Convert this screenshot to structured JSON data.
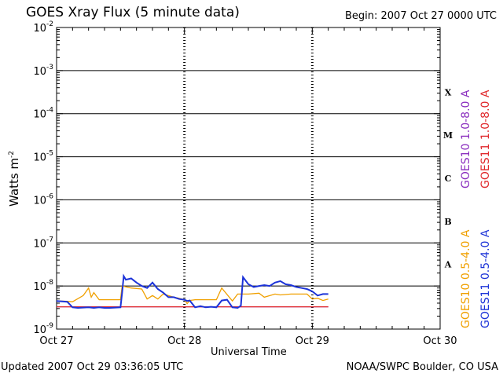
{
  "header": {
    "title": "GOES Xray Flux (5 minute data)",
    "begin": "Begin:  2007 Oct 27 0000 UTC"
  },
  "footer": {
    "updated": "Updated 2007 Oct 29 03:36:05 UTC",
    "credit": "NOAA/SWPC Boulder, CO USA"
  },
  "chart_data": {
    "type": "line",
    "title": "GOES Xray Flux (5 minute data)",
    "xlabel": "Universal Time",
    "ylabel": "Watts m",
    "ylabel_sup": "-2",
    "yscale": "log",
    "ylim": [
      1e-09,
      0.01
    ],
    "xlim": [
      0,
      72
    ],
    "x_unit": "hours since 2007 Oct 27 0000 UTC",
    "x_ticks": [
      {
        "x": 0,
        "label": "Oct 27"
      },
      {
        "x": 24,
        "label": "Oct 28"
      },
      {
        "x": 48,
        "label": "Oct 29"
      },
      {
        "x": 72,
        "label": "Oct 30"
      }
    ],
    "y_ticks": [
      {
        "base": "10",
        "exp": "-9"
      },
      {
        "base": "10",
        "exp": "-8"
      },
      {
        "base": "10",
        "exp": "-7"
      },
      {
        "base": "10",
        "exp": "-6"
      },
      {
        "base": "10",
        "exp": "-5"
      },
      {
        "base": "10",
        "exp": "-4"
      },
      {
        "base": "10",
        "exp": "-3"
      },
      {
        "base": "10",
        "exp": "-2"
      }
    ],
    "flare_classes": [
      "A",
      "B",
      "C",
      "M",
      "X"
    ],
    "grid": true,
    "legend_position": "right",
    "series": [
      {
        "name": "GOES10 1.0-8.0 A",
        "color": "#8b2fbf",
        "x": [
          0,
          5,
          10,
          12,
          20,
          24,
          30,
          36,
          42,
          48,
          51
        ],
        "y": [
          3.3e-09,
          3.3e-09,
          3.3e-09,
          3.3e-09,
          3.3e-09,
          3.3e-09,
          3.3e-09,
          3.3e-09,
          3.3e-09,
          3.3e-09,
          3.3e-09
        ]
      },
      {
        "name": "GOES11 1.0-8.0 A",
        "color": "#e0282c",
        "x": [
          0,
          5,
          10,
          12,
          20,
          24,
          30,
          36,
          42,
          48,
          51
        ],
        "y": [
          3.3e-09,
          3.3e-09,
          3.3e-09,
          3.3e-09,
          3.3e-09,
          3.3e-09,
          3.3e-09,
          3.3e-09,
          3.3e-09,
          3.3e-09,
          3.3e-09
        ]
      },
      {
        "name": "GOES10 0.5-4.0 A",
        "color": "#f0a000",
        "x": [
          0,
          2,
          3,
          5,
          6,
          6.5,
          7,
          8,
          10,
          12,
          12.3,
          14,
          16,
          17,
          18,
          19,
          20,
          22,
          23,
          24,
          24.5,
          25,
          26,
          28,
          30,
          31,
          33,
          34,
          36,
          38,
          39,
          41,
          42,
          44,
          46,
          47,
          48,
          49,
          50,
          51
        ],
        "y": [
          4.5e-09,
          4.4e-09,
          4.3e-09,
          6e-09,
          9e-09,
          5.5e-09,
          7e-09,
          4.8e-09,
          4.8e-09,
          4.8e-09,
          1e-08,
          9e-09,
          8.5e-09,
          5e-09,
          6e-09,
          5e-09,
          6.5e-09,
          5.5e-09,
          5.2e-09,
          4.8e-09,
          3.9e-09,
          4.6e-09,
          4.8e-09,
          4.8e-09,
          4.8e-09,
          9e-09,
          4.5e-09,
          6.5e-09,
          6.5e-09,
          6.8e-09,
          5.5e-09,
          6.5e-09,
          6.2e-09,
          6.5e-09,
          6.5e-09,
          6.5e-09,
          5e-09,
          5.2e-09,
          4.6e-09,
          5e-09
        ]
      },
      {
        "name": "GOES11 0.5-4.0 A",
        "color": "#1c33d8",
        "x": [
          0,
          2,
          3,
          4,
          6,
          7,
          8,
          9,
          10,
          12,
          12.3,
          12.6,
          13,
          14,
          15,
          16,
          17,
          18,
          19,
          20,
          21,
          22,
          23,
          24,
          24.5,
          25,
          26,
          27,
          28,
          29,
          30,
          31,
          32,
          33,
          34,
          34.6,
          35,
          36,
          37,
          38,
          39,
          40,
          41,
          42,
          43,
          44,
          45,
          46,
          47,
          48,
          49,
          50,
          51
        ],
        "y": [
          4.5e-09,
          4.3e-09,
          3.2e-09,
          3.1e-09,
          3.2e-09,
          3.1e-09,
          3.2e-09,
          3.1e-09,
          3.1e-09,
          3.2e-09,
          7e-09,
          1.7e-08,
          1.4e-08,
          1.5e-08,
          1.2e-08,
          1e-08,
          9e-09,
          1.2e-08,
          8.5e-09,
          7e-09,
          5.5e-09,
          5.5e-09,
          5e-09,
          4.8e-09,
          4.5e-09,
          4.6e-09,
          3.2e-09,
          3.4e-09,
          3.2e-09,
          3.3e-09,
          3.2e-09,
          4.6e-09,
          4.8e-09,
          3.2e-09,
          3.1e-09,
          3.5e-09,
          1.6e-08,
          1.1e-08,
          9.5e-09,
          1e-08,
          1.05e-08,
          1e-08,
          1.2e-08,
          1.3e-08,
          1.1e-08,
          1.05e-08,
          9.5e-09,
          9e-09,
          8.5e-09,
          7.5e-09,
          6e-09,
          6.5e-09,
          6.5e-09
        ]
      }
    ]
  }
}
